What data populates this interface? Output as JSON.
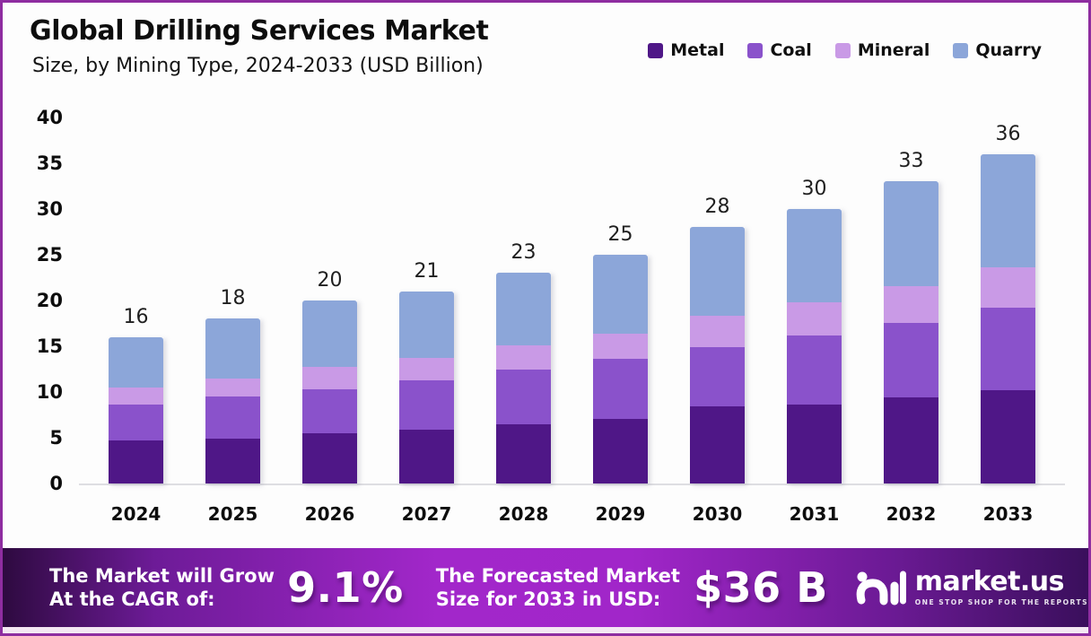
{
  "page": {
    "title": "Global Drilling Services Market",
    "subtitle": "Size, by Mining Type, 2024-2033 (USD Billion)"
  },
  "chart_data": {
    "type": "bar",
    "stacked": true,
    "title": "Global Drilling Services Market Size, by Mining Type, 2024-2033 (USD Billion)",
    "categories": [
      "2024",
      "2025",
      "2026",
      "2027",
      "2028",
      "2029",
      "2030",
      "2031",
      "2032",
      "2033"
    ],
    "series": [
      {
        "name": "Metal",
        "color": "#4f1787",
        "values": [
          4.7,
          4.9,
          5.5,
          5.9,
          6.5,
          7.1,
          8.4,
          8.6,
          9.4,
          10.2
        ]
      },
      {
        "name": "Coal",
        "color": "#8a52cb",
        "values": [
          3.9,
          4.6,
          4.8,
          5.4,
          6.0,
          6.5,
          6.5,
          7.6,
          8.2,
          9.0
        ]
      },
      {
        "name": "Mineral",
        "color": "#c99ae6",
        "values": [
          1.9,
          2.0,
          2.4,
          2.4,
          2.6,
          2.8,
          3.4,
          3.6,
          4.0,
          4.4
        ]
      },
      {
        "name": "Quarry",
        "color": "#8ca6d9",
        "values": [
          5.5,
          6.5,
          7.3,
          7.3,
          7.9,
          8.6,
          9.7,
          10.2,
          11.4,
          12.4
        ]
      }
    ],
    "totals": [
      16,
      18,
      20,
      21,
      23,
      25,
      28,
      30,
      33,
      36
    ],
    "xlabel": "",
    "ylabel": "",
    "ylim": [
      0,
      40
    ],
    "y_ticks": [
      0,
      5,
      10,
      15,
      20,
      25,
      30,
      35,
      40
    ],
    "grid": false,
    "legend_position": "top-right"
  },
  "banner": {
    "cagr_label_line1": "The Market will Grow",
    "cagr_label_line2": "At the CAGR of:",
    "cagr_value": "9.1%",
    "forecast_label_line1": "The Forecasted Market",
    "forecast_label_line2": "Size for 2033 in USD:",
    "forecast_value": "$36 B",
    "logo_name": "market.us",
    "logo_tagline": "ONE STOP SHOP FOR THE REPORTS"
  },
  "colors": {
    "page_border": "#8e2da0",
    "background": "#fdfdfd",
    "axis_line": "#dedee2",
    "text_dark": "#0d0d0d",
    "banner_bright": "#a227ca",
    "banner_dark_left": "#2e0a40",
    "banner_dark_right": "#3a0f5c",
    "banner_strip": "#f4e8f3"
  }
}
